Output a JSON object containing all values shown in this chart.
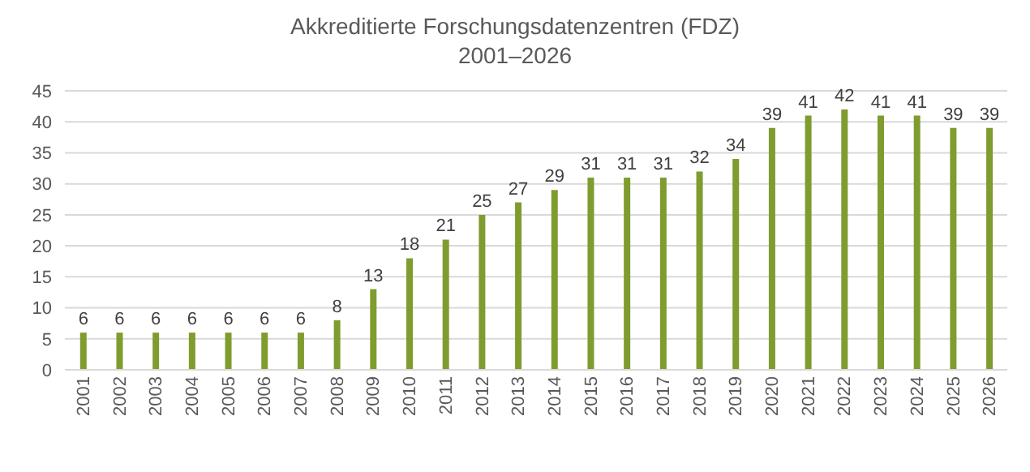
{
  "chart_data": {
    "type": "bar",
    "title": "Akkreditierte Forschungsdatenzentren (FDZ)",
    "subtitle": "2001–2026",
    "categories": [
      "2001",
      "2002",
      "2003",
      "2004",
      "2005",
      "2006",
      "2007",
      "2008",
      "2009",
      "2010",
      "2011",
      "2012",
      "2013",
      "2014",
      "2015",
      "2016",
      "2017",
      "2018",
      "2019",
      "2020",
      "2021",
      "2022",
      "2023",
      "2024",
      "2025",
      "2026"
    ],
    "values": [
      6,
      6,
      6,
      6,
      6,
      6,
      6,
      8,
      13,
      18,
      21,
      25,
      27,
      29,
      31,
      31,
      31,
      32,
      34,
      39,
      41,
      42,
      41,
      41,
      39,
      39
    ],
    "color": "#7f9c2e",
    "ylim": [
      0,
      45
    ],
    "yticks": [
      0,
      5,
      10,
      15,
      20,
      25,
      30,
      35,
      40,
      45
    ],
    "grid": "y",
    "data_labels": true
  }
}
